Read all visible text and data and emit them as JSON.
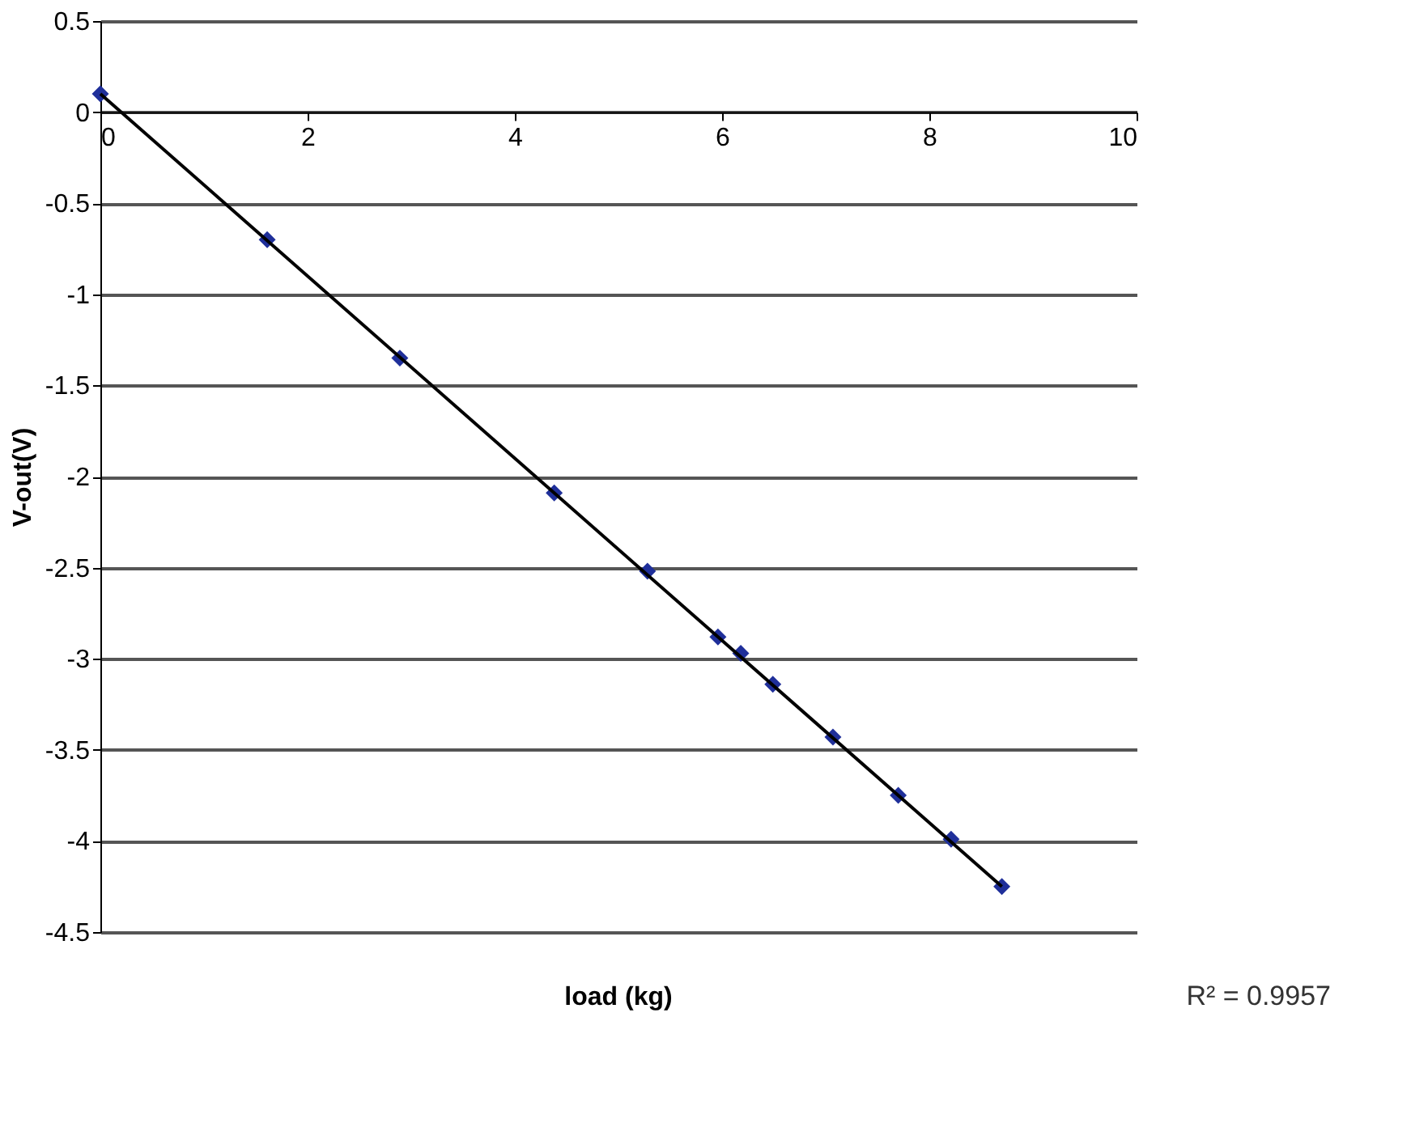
{
  "chart_data": {
    "type": "scatter",
    "xlabel": "load (kg)",
    "ylabel": "V-out(V)",
    "x": [
      0,
      1.61,
      2.89,
      4.38,
      5.28,
      5.96,
      6.18,
      6.49,
      7.07,
      7.7,
      8.21,
      8.7
    ],
    "series": [
      {
        "color": "#1f2f9a",
        "marker": "diamond",
        "values": [
          0.1,
          -0.7,
          -1.35,
          -2.09,
          -2.52,
          -2.88,
          -2.97,
          -3.14,
          -3.43,
          -3.75,
          -3.99,
          -4.25
        ]
      },
      {
        "type": "line",
        "color": "#000000",
        "line_style": "solid",
        "x": [
          0,
          8.7
        ],
        "values": [
          0.1,
          -4.25
        ]
      }
    ],
    "xlim": [
      0,
      10
    ],
    "xticks": [
      0,
      2,
      4,
      6,
      8,
      10
    ],
    "ylim": [
      -4.5,
      0.5
    ],
    "yticks": [
      -4.5,
      -4,
      -3.5,
      -3,
      -2.5,
      -2,
      -1.5,
      -1,
      -0.5,
      0,
      0.5
    ],
    "grid": "y",
    "annotations": [
      "R² = 0.9957"
    ]
  }
}
